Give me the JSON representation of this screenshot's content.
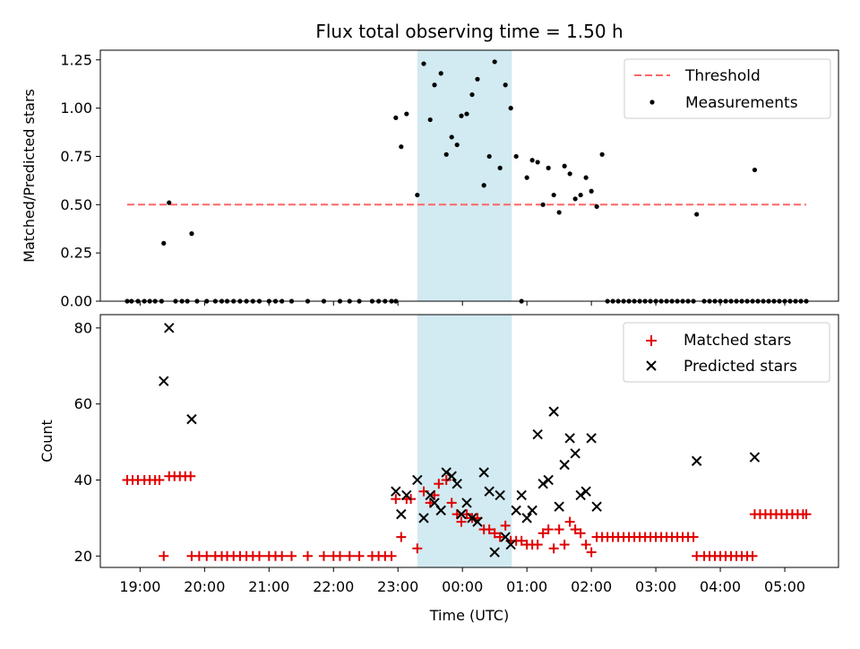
{
  "title": "Flux total observing time = 1.50 h",
  "colors": {
    "threshold": "#ff6666",
    "measurement": "#000000",
    "matched": "#e00000",
    "predicted": "#000000",
    "highlight": "#add8e6"
  },
  "chart_data": [
    {
      "type": "scatter",
      "ylabel": "Matched/Predicted stars",
      "xlabel": "",
      "ylim": [
        0,
        1.3
      ],
      "xlim": [
        "18:23",
        "05:50"
      ],
      "yticks": [
        "0.00",
        "0.25",
        "0.50",
        "0.75",
        "1.00",
        "1.25"
      ],
      "highlight_span": [
        "23:18",
        "00:46"
      ],
      "legend": {
        "position": "top-right",
        "entries": [
          "Threshold",
          "Measurements"
        ]
      },
      "threshold": {
        "name": "Threshold",
        "y": 0.5,
        "x": [
          "18:48",
          "05:20"
        ]
      },
      "measurements": {
        "name": "Measurements",
        "points": [
          [
            "18:48",
            0
          ],
          [
            "18:52",
            0
          ],
          [
            "18:58",
            0
          ],
          [
            "19:04",
            0
          ],
          [
            "19:09",
            0
          ],
          [
            "19:14",
            0
          ],
          [
            "19:20",
            0
          ],
          [
            "19:22",
            0.3
          ],
          [
            "19:27",
            0.51
          ],
          [
            "19:33",
            0
          ],
          [
            "19:39",
            0
          ],
          [
            "19:44",
            0
          ],
          [
            "19:48",
            0.35
          ],
          [
            "19:53",
            0
          ],
          [
            "20:02",
            0
          ],
          [
            "20:10",
            0
          ],
          [
            "20:16",
            0
          ],
          [
            "20:21",
            0
          ],
          [
            "20:27",
            0
          ],
          [
            "20:33",
            0
          ],
          [
            "20:39",
            0
          ],
          [
            "20:45",
            0
          ],
          [
            "20:51",
            0
          ],
          [
            "21:00",
            0
          ],
          [
            "21:06",
            0
          ],
          [
            "21:12",
            0
          ],
          [
            "21:21",
            0
          ],
          [
            "21:36",
            0
          ],
          [
            "21:51",
            0
          ],
          [
            "22:06",
            0
          ],
          [
            "22:15",
            0
          ],
          [
            "22:24",
            0
          ],
          [
            "22:36",
            0
          ],
          [
            "22:42",
            0
          ],
          [
            "22:48",
            0
          ],
          [
            "22:54",
            0
          ],
          [
            "22:58",
            0
          ],
          [
            "22:58",
            0.95
          ],
          [
            "23:03",
            0.8
          ],
          [
            "23:08",
            0.97
          ],
          [
            "23:18",
            0.55
          ],
          [
            "23:24",
            1.23
          ],
          [
            "23:30",
            0.94
          ],
          [
            "23:34",
            1.12
          ],
          [
            "23:40",
            1.18
          ],
          [
            "23:45",
            0.76
          ],
          [
            "23:50",
            0.85
          ],
          [
            "23:55",
            0.81
          ],
          [
            "23:59",
            0.96
          ],
          [
            "00:04",
            0.97
          ],
          [
            "00:09",
            1.07
          ],
          [
            "00:14",
            1.15
          ],
          [
            "00:20",
            0.6
          ],
          [
            "00:25",
            0.75
          ],
          [
            "00:30",
            1.24
          ],
          [
            "00:35",
            0.69
          ],
          [
            "00:40",
            1.12
          ],
          [
            "00:45",
            1.0
          ],
          [
            "00:50",
            0.75
          ],
          [
            "00:55",
            0
          ],
          [
            "01:00",
            0.64
          ],
          [
            "01:05",
            0.73
          ],
          [
            "01:10",
            0.72
          ],
          [
            "01:15",
            0.5
          ],
          [
            "01:20",
            0.69
          ],
          [
            "01:25",
            0.55
          ],
          [
            "01:30",
            0.46
          ],
          [
            "01:35",
            0.7
          ],
          [
            "01:40",
            0.66
          ],
          [
            "01:45",
            0.53
          ],
          [
            "01:50",
            0.55
          ],
          [
            "01:55",
            0.64
          ],
          [
            "02:00",
            0.57
          ],
          [
            "02:05",
            0.49
          ],
          [
            "02:10",
            0.76
          ],
          [
            "02:15",
            0
          ],
          [
            "02:20",
            0
          ],
          [
            "02:25",
            0
          ],
          [
            "02:30",
            0
          ],
          [
            "02:35",
            0
          ],
          [
            "02:40",
            0
          ],
          [
            "02:45",
            0
          ],
          [
            "02:50",
            0
          ],
          [
            "02:55",
            0
          ],
          [
            "03:00",
            0
          ],
          [
            "03:05",
            0
          ],
          [
            "03:10",
            0
          ],
          [
            "03:15",
            0
          ],
          [
            "03:20",
            0
          ],
          [
            "03:25",
            0
          ],
          [
            "03:30",
            0
          ],
          [
            "03:35",
            0
          ],
          [
            "03:38",
            0.45
          ],
          [
            "03:45",
            0
          ],
          [
            "03:50",
            0
          ],
          [
            "03:55",
            0
          ],
          [
            "04:00",
            0
          ],
          [
            "04:05",
            0
          ],
          [
            "04:10",
            0
          ],
          [
            "04:15",
            0
          ],
          [
            "04:20",
            0
          ],
          [
            "04:25",
            0
          ],
          [
            "04:30",
            0
          ],
          [
            "04:35",
            0
          ],
          [
            "04:40",
            0
          ],
          [
            "04:45",
            0
          ],
          [
            "04:50",
            0
          ],
          [
            "04:55",
            0
          ],
          [
            "05:00",
            0
          ],
          [
            "05:05",
            0
          ],
          [
            "05:10",
            0
          ],
          [
            "05:15",
            0
          ],
          [
            "05:20",
            0
          ],
          [
            "04:32",
            0.68
          ]
        ]
      }
    },
    {
      "type": "scatter",
      "ylabel": "Count",
      "xlabel": "Time (UTC)",
      "ylim": [
        17,
        83.5
      ],
      "xlim": [
        "18:23",
        "05:50"
      ],
      "yticks": [
        "20",
        "40",
        "60",
        "80"
      ],
      "xticks": [
        "19:00",
        "20:00",
        "21:00",
        "22:00",
        "23:00",
        "00:00",
        "01:00",
        "02:00",
        "03:00",
        "04:00",
        "05:00"
      ],
      "highlight_span": [
        "23:18",
        "00:46"
      ],
      "legend": {
        "position": "top-right",
        "entries": [
          "Matched stars",
          "Predicted stars"
        ]
      },
      "series": [
        {
          "name": "Matched stars",
          "marker": "plus",
          "points": [
            [
              "18:48",
              40
            ],
            [
              "18:53",
              40
            ],
            [
              "18:58",
              40
            ],
            [
              "19:04",
              40
            ],
            [
              "19:09",
              40
            ],
            [
              "19:14",
              40
            ],
            [
              "19:18",
              40
            ],
            [
              "19:22",
              20
            ],
            [
              "19:27",
              41
            ],
            [
              "19:32",
              41
            ],
            [
              "19:37",
              41
            ],
            [
              "19:42",
              41
            ],
            [
              "19:47",
              41
            ],
            [
              "19:48",
              20
            ],
            [
              "19:55",
              20
            ],
            [
              "20:02",
              20
            ],
            [
              "20:10",
              20
            ],
            [
              "20:16",
              20
            ],
            [
              "20:21",
              20
            ],
            [
              "20:27",
              20
            ],
            [
              "20:33",
              20
            ],
            [
              "20:39",
              20
            ],
            [
              "20:45",
              20
            ],
            [
              "20:51",
              20
            ],
            [
              "21:00",
              20
            ],
            [
              "21:06",
              20
            ],
            [
              "21:12",
              20
            ],
            [
              "21:21",
              20
            ],
            [
              "21:36",
              20
            ],
            [
              "21:51",
              20
            ],
            [
              "22:00",
              20
            ],
            [
              "22:06",
              20
            ],
            [
              "22:15",
              20
            ],
            [
              "22:24",
              20
            ],
            [
              "22:36",
              20
            ],
            [
              "22:42",
              20
            ],
            [
              "22:48",
              20
            ],
            [
              "22:54",
              20
            ],
            [
              "22:58",
              35
            ],
            [
              "23:03",
              25
            ],
            [
              "23:08",
              35
            ],
            [
              "23:12",
              35
            ],
            [
              "23:18",
              22
            ],
            [
              "23:24",
              37
            ],
            [
              "23:30",
              34
            ],
            [
              "23:34",
              36
            ],
            [
              "23:38",
              39
            ],
            [
              "23:45",
              40
            ],
            [
              "23:50",
              34
            ],
            [
              "23:55",
              31
            ],
            [
              "23:59",
              29
            ],
            [
              "00:04",
              31
            ],
            [
              "00:09",
              30
            ],
            [
              "00:14",
              30
            ],
            [
              "00:20",
              27
            ],
            [
              "00:25",
              27
            ],
            [
              "00:30",
              26
            ],
            [
              "00:35",
              25
            ],
            [
              "00:40",
              28
            ],
            [
              "00:45",
              24
            ],
            [
              "00:50",
              24
            ],
            [
              "00:55",
              24
            ],
            [
              "01:00",
              23
            ],
            [
              "01:05",
              23
            ],
            [
              "01:10",
              23
            ],
            [
              "01:15",
              26
            ],
            [
              "01:20",
              27
            ],
            [
              "01:25",
              22
            ],
            [
              "01:30",
              27
            ],
            [
              "01:35",
              23
            ],
            [
              "01:40",
              29
            ],
            [
              "01:45",
              27
            ],
            [
              "01:50",
              26
            ],
            [
              "01:55",
              23
            ],
            [
              "02:00",
              21
            ],
            [
              "02:05",
              25
            ],
            [
              "02:10",
              25
            ],
            [
              "02:15",
              25
            ],
            [
              "02:20",
              25
            ],
            [
              "02:25",
              25
            ],
            [
              "02:30",
              25
            ],
            [
              "02:35",
              25
            ],
            [
              "02:40",
              25
            ],
            [
              "02:45",
              25
            ],
            [
              "02:50",
              25
            ],
            [
              "02:55",
              25
            ],
            [
              "03:00",
              25
            ],
            [
              "03:05",
              25
            ],
            [
              "03:10",
              25
            ],
            [
              "03:15",
              25
            ],
            [
              "03:20",
              25
            ],
            [
              "03:25",
              25
            ],
            [
              "03:30",
              25
            ],
            [
              "03:35",
              25
            ],
            [
              "03:38",
              20
            ],
            [
              "03:45",
              20
            ],
            [
              "03:50",
              20
            ],
            [
              "03:55",
              20
            ],
            [
              "04:00",
              20
            ],
            [
              "04:05",
              20
            ],
            [
              "04:10",
              20
            ],
            [
              "04:15",
              20
            ],
            [
              "04:20",
              20
            ],
            [
              "04:25",
              20
            ],
            [
              "04:30",
              20
            ],
            [
              "04:32",
              31
            ],
            [
              "04:37",
              31
            ],
            [
              "04:42",
              31
            ],
            [
              "04:47",
              31
            ],
            [
              "04:52",
              31
            ],
            [
              "04:57",
              31
            ],
            [
              "05:02",
              31
            ],
            [
              "05:07",
              31
            ],
            [
              "05:12",
              31
            ],
            [
              "05:17",
              31
            ],
            [
              "05:20",
              31
            ]
          ]
        },
        {
          "name": "Predicted stars",
          "marker": "x",
          "points": [
            [
              "19:22",
              66
            ],
            [
              "19:27",
              80
            ],
            [
              "19:48",
              56
            ],
            [
              "22:58",
              37
            ],
            [
              "23:03",
              31
            ],
            [
              "23:08",
              36
            ],
            [
              "23:18",
              40
            ],
            [
              "23:24",
              30
            ],
            [
              "23:30",
              36
            ],
            [
              "23:34",
              34
            ],
            [
              "23:40",
              32
            ],
            [
              "23:45",
              42
            ],
            [
              "23:50",
              41
            ],
            [
              "23:55",
              39
            ],
            [
              "23:59",
              31
            ],
            [
              "00:04",
              34
            ],
            [
              "00:09",
              30
            ],
            [
              "00:14",
              29
            ],
            [
              "00:20",
              42
            ],
            [
              "00:25",
              37
            ],
            [
              "00:30",
              21
            ],
            [
              "00:35",
              36
            ],
            [
              "00:40",
              25
            ],
            [
              "00:45",
              23
            ],
            [
              "00:50",
              32
            ],
            [
              "00:55",
              36
            ],
            [
              "01:00",
              30
            ],
            [
              "01:05",
              32
            ],
            [
              "01:10",
              52
            ],
            [
              "01:15",
              39
            ],
            [
              "01:20",
              40
            ],
            [
              "01:25",
              58
            ],
            [
              "01:30",
              33
            ],
            [
              "01:35",
              44
            ],
            [
              "01:40",
              51
            ],
            [
              "01:45",
              47
            ],
            [
              "01:50",
              36
            ],
            [
              "01:55",
              37
            ],
            [
              "02:00",
              51
            ],
            [
              "02:05",
              33
            ],
            [
              "03:38",
              45
            ],
            [
              "04:32",
              46
            ]
          ]
        }
      ]
    }
  ]
}
